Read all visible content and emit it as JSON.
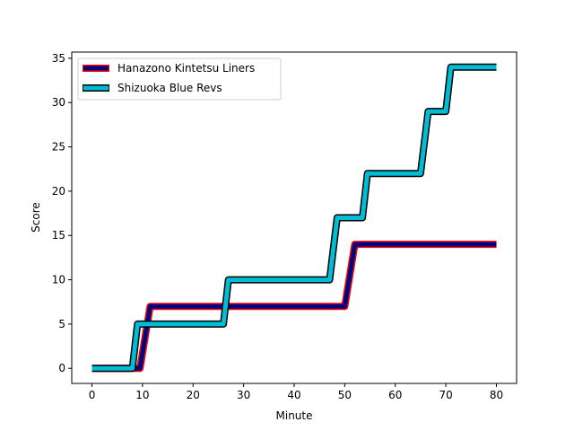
{
  "chart_data": {
    "type": "line",
    "xlabel": "Minute",
    "ylabel": "Score",
    "xlim": [
      -4,
      84
    ],
    "ylim": [
      -1.7,
      35.7
    ],
    "xticks": [
      0,
      10,
      20,
      30,
      40,
      50,
      60,
      70,
      80
    ],
    "yticks": [
      0,
      5,
      10,
      15,
      20,
      25,
      30,
      35
    ],
    "legend_position": "top-left",
    "grid": false,
    "series": [
      {
        "name": "Hanazono Kintetsu Liners",
        "color": "#000080",
        "edge_color": "#ff0000",
        "points": [
          [
            0,
            0
          ],
          [
            9.5,
            0
          ],
          [
            11.5,
            7
          ],
          [
            50,
            7
          ],
          [
            52,
            14
          ],
          [
            80,
            14
          ]
        ]
      },
      {
        "name": "Shizuoka Blue Revs",
        "color": "#00bcd4",
        "edge_color": "#000000",
        "points": [
          [
            0,
            0
          ],
          [
            8,
            0
          ],
          [
            9,
            5
          ],
          [
            26,
            5
          ],
          [
            27,
            10
          ],
          [
            47,
            10
          ],
          [
            48.5,
            17
          ],
          [
            53.5,
            17
          ],
          [
            54.5,
            22
          ],
          [
            65,
            22
          ],
          [
            66.5,
            29
          ],
          [
            70,
            29
          ],
          [
            71,
            34
          ],
          [
            80,
            34
          ]
        ]
      }
    ]
  }
}
